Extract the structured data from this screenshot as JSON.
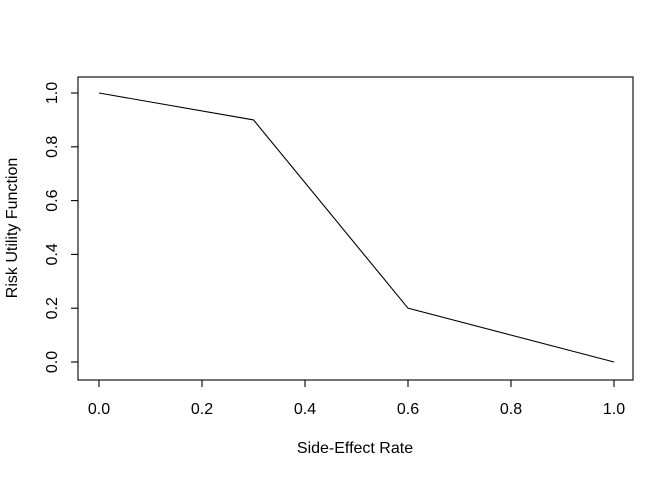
{
  "figure": {
    "background": "#ffffff",
    "foreground": "#000000"
  },
  "chart_data": {
    "type": "line",
    "x": [
      0.0,
      0.3,
      0.6,
      1.0
    ],
    "y": [
      1.0,
      0.9,
      0.2,
      0.0
    ],
    "title": "",
    "xlabel": "Side-Effect Rate",
    "ylabel": "Risk Utility Function",
    "xlim": [
      0.0,
      1.0
    ],
    "ylim": [
      0.0,
      1.0
    ],
    "xtick_values": [
      0.0,
      0.2,
      0.4,
      0.6,
      0.8,
      1.0
    ],
    "xtick_labels": [
      "0.0",
      "0.2",
      "0.4",
      "0.6",
      "0.8",
      "1.0"
    ],
    "ytick_values": [
      0.0,
      0.2,
      0.4,
      0.6,
      0.8,
      1.0
    ],
    "ytick_labels": [
      "0.0",
      "0.2",
      "0.4",
      "0.6",
      "0.8",
      "1.0"
    ],
    "grid": false,
    "legend": null,
    "line_color": "#000000",
    "frame": "box"
  }
}
